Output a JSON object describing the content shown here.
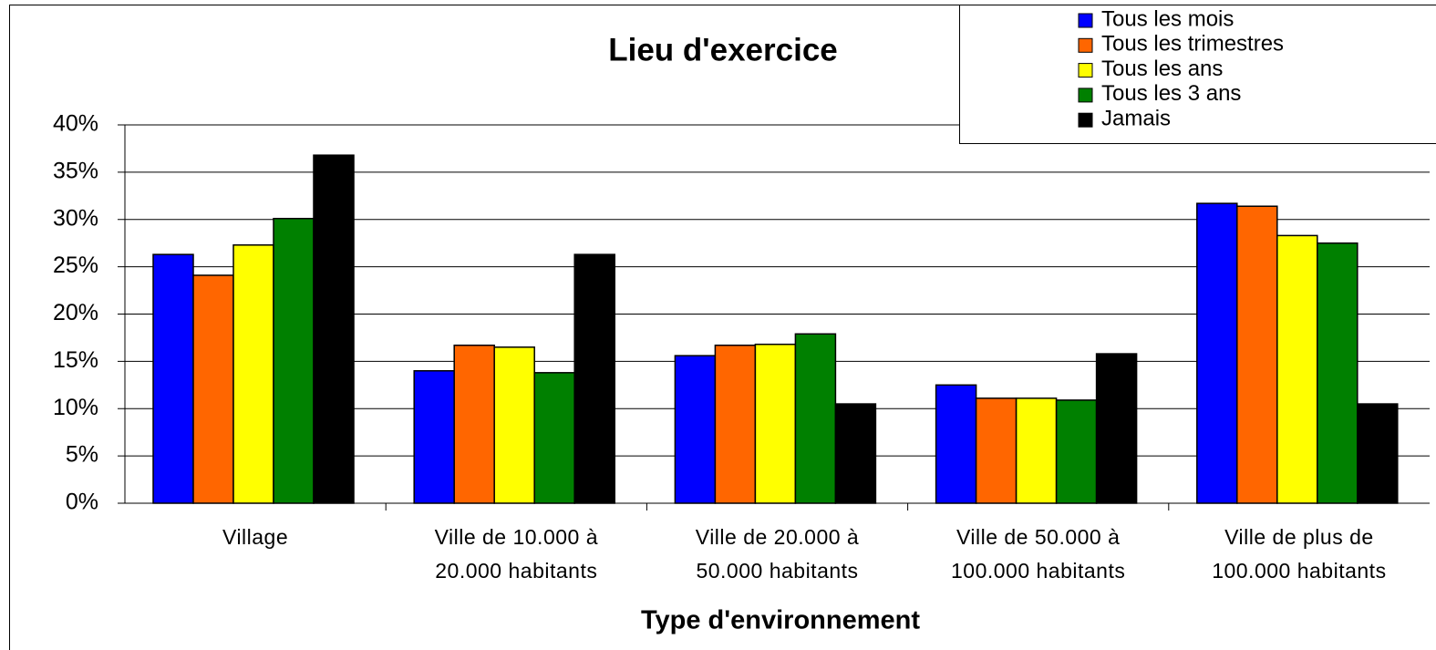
{
  "chart_data": {
    "type": "bar",
    "title": "Lieu d'exercice",
    "x_label": "Type d'environnement",
    "categories": [
      "Village",
      "Ville de 10.000 à\n20.000 habitants",
      "Ville de 20.000 à\n50.000 habitants",
      "Ville de 50.000 à\n100.000 habitants",
      "Ville de plus de\n100.000 habitants"
    ],
    "series": [
      {
        "name": "Tous les mois",
        "color": "#0000ff",
        "values": [
          26.3,
          14.0,
          15.6,
          12.5,
          31.7
        ]
      },
      {
        "name": "Tous les trimestres",
        "color": "#ff6600",
        "values": [
          24.1,
          16.7,
          16.7,
          11.1,
          31.4
        ]
      },
      {
        "name": "Tous les ans",
        "color": "#ffff00",
        "values": [
          27.3,
          16.5,
          16.8,
          11.1,
          28.3
        ]
      },
      {
        "name": "Tous les 3 ans",
        "color": "#008000",
        "values": [
          30.1,
          13.8,
          17.9,
          10.9,
          27.5
        ]
      },
      {
        "name": "Jamais",
        "color": "#000000",
        "values": [
          36.8,
          26.3,
          10.5,
          15.8,
          10.5
        ]
      }
    ],
    "ylim": [
      0,
      40
    ],
    "yticks": [
      {
        "value": 0,
        "label": "0%"
      },
      {
        "value": 5,
        "label": "5%"
      },
      {
        "value": 10,
        "label": "10%"
      },
      {
        "value": 15,
        "label": "15%"
      },
      {
        "value": 20,
        "label": "20%"
      },
      {
        "value": 25,
        "label": "25%"
      },
      {
        "value": 30,
        "label": "30%"
      },
      {
        "value": 35,
        "label": "35%"
      },
      {
        "value": 40,
        "label": "40%"
      }
    ],
    "grid": true,
    "legend": "top-right"
  }
}
